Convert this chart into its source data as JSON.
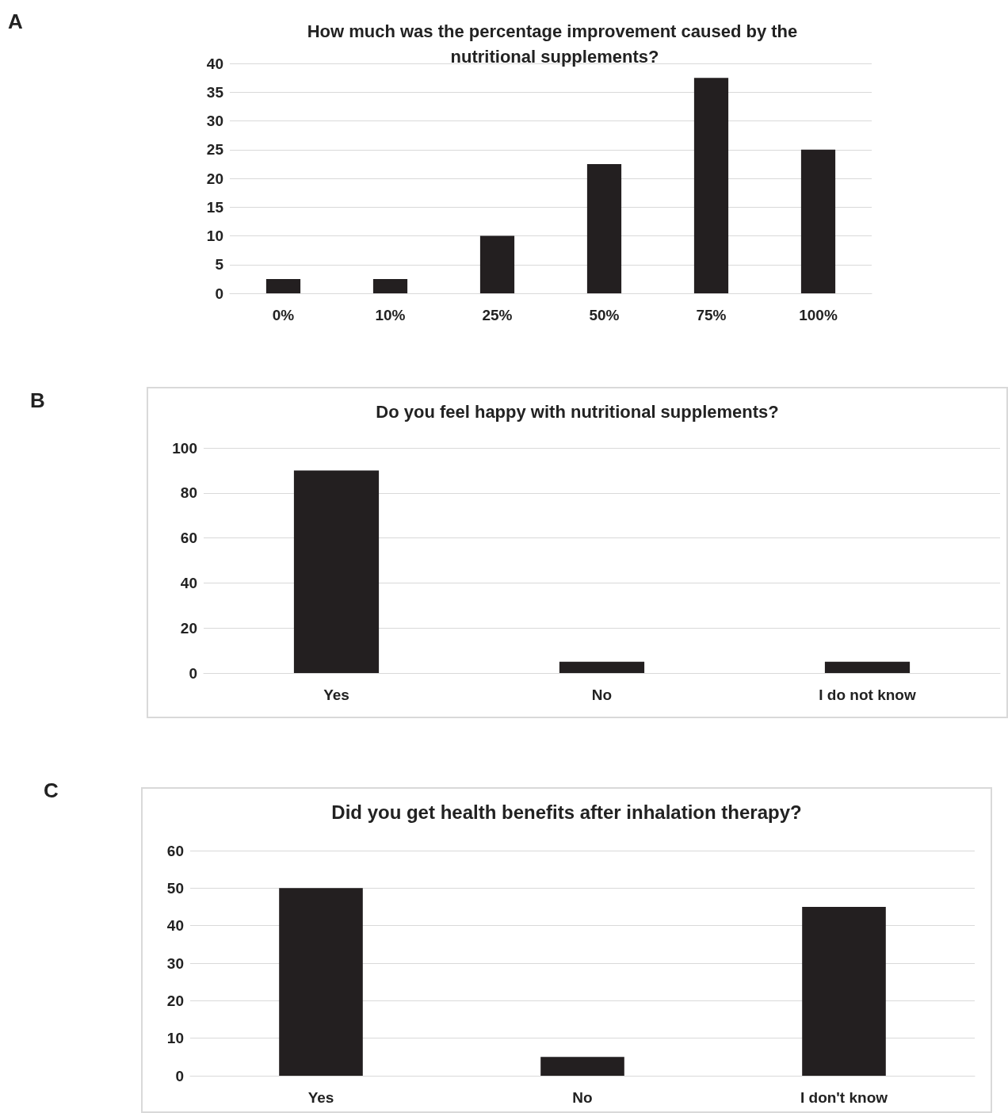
{
  "chart_data": [
    {
      "type": "bar",
      "title": "How much was the percentage improvement caused by the nutritional supplements?",
      "categories": [
        "0%",
        "10%",
        "25%",
        "50%",
        "75%",
        "100%"
      ],
      "values": [
        2.5,
        2.5,
        10,
        22.5,
        37.5,
        25
      ],
      "color": "#231f20",
      "ylim": [
        0,
        40
      ],
      "yticks": [
        0,
        5,
        10,
        15,
        20,
        25,
        30,
        35,
        40
      ],
      "grid": "y",
      "annotations": [
        "A"
      ]
    },
    {
      "type": "bar",
      "title": "Do you feel happy with nutritional supplements?",
      "categories": [
        "Yes",
        "No",
        "I do not know"
      ],
      "values": [
        90,
        5,
        5
      ],
      "color": "#231f20",
      "ylim": [
        0,
        100
      ],
      "yticks": [
        0,
        20,
        40,
        60,
        80,
        100
      ],
      "grid": "y",
      "annotations": [
        "B"
      ]
    },
    {
      "type": "bar",
      "title": "Did you get health benefits after inhalation therapy?",
      "categories": [
        "Yes",
        "No",
        "I don't know"
      ],
      "values": [
        50,
        5,
        45
      ],
      "color": "#231f20",
      "ylim": [
        0,
        60
      ],
      "yticks": [
        0,
        10,
        20,
        30,
        40,
        50,
        60
      ],
      "grid": "y",
      "annotations": [
        "C"
      ]
    }
  ]
}
